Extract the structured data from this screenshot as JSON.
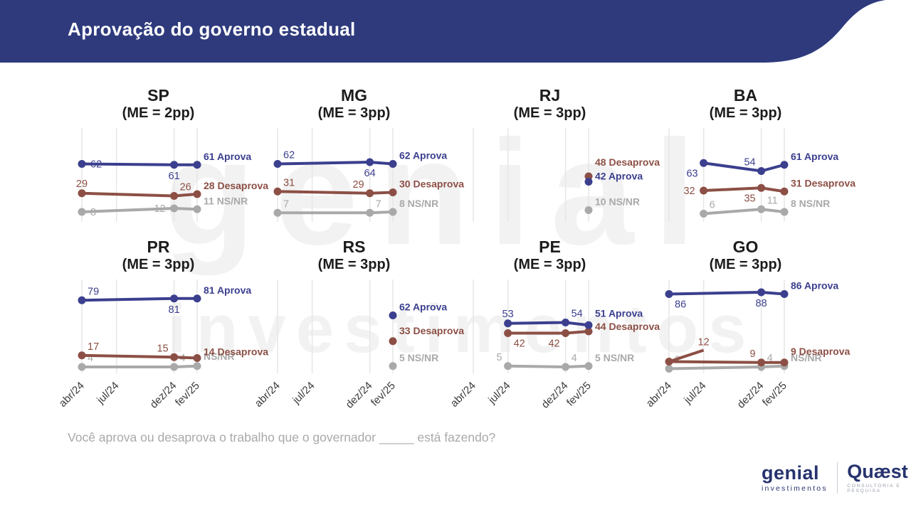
{
  "header": {
    "title": "Aprovação do governo estadual"
  },
  "question": "Você aprova ou desaprova o trabalho que o governador _____ está fazendo?",
  "watermark": {
    "line1": "genial",
    "line2": "investimentos"
  },
  "footer": {
    "genial_name": "genial",
    "genial_sub": "investimentos",
    "quaest_name": "Quæst",
    "quaest_sub": "CONSULTORIA E PESQUISA"
  },
  "colors": {
    "header_bg": "#2e3a7c",
    "aprova": "#3b3f8e",
    "desaprova": "#8c4f45",
    "ns_nr": "#a9a9a9",
    "grid": "#e6e6e6",
    "axis_text": "#3c3c3c",
    "question_text": "#a9a9a9",
    "logo_navy": "#27336f",
    "quaest_sub_color": "#9aa0ad"
  },
  "axis": {
    "ticks": [
      "abr/24",
      "jul/24",
      "dez/24",
      "fev/25"
    ],
    "tick_months": [
      0,
      3,
      8,
      10
    ]
  },
  "chart_data": [
    {
      "type": "line",
      "state": "SP",
      "me": "(ME = 2pp)",
      "row": 0,
      "col": 0,
      "series": [
        {
          "key": "ns_nr",
          "name": "NS/NR",
          "x_months": [
            0,
            8,
            10
          ],
          "values": [
            8,
            12,
            11
          ],
          "point_labels": [
            "8",
            "12"
          ],
          "label_pos": [
            "r",
            "l"
          ],
          "end_label": "11 NS/NR"
        },
        {
          "key": "desaprova",
          "name": "Desaprova",
          "x_months": [
            0,
            8,
            10
          ],
          "values": [
            29,
            26,
            28
          ],
          "point_labels": [
            "29",
            "26"
          ],
          "label_pos": [
            "a",
            "ar"
          ],
          "end_label": "28 Desaprova"
        },
        {
          "key": "aprova",
          "name": "Aprova",
          "x_months": [
            0,
            8,
            10
          ],
          "values": [
            62,
            61,
            61
          ],
          "point_labels": [
            "62",
            "61"
          ],
          "label_pos": [
            "r",
            "b"
          ],
          "end_label": "61 Aprova"
        }
      ]
    },
    {
      "type": "line",
      "state": "MG",
      "me": "(ME = 3pp)",
      "row": 0,
      "col": 1,
      "series": [
        {
          "key": "ns_nr",
          "name": "NS/NR",
          "x_months": [
            0,
            8,
            10
          ],
          "values": [
            7,
            7,
            8
          ],
          "point_labels": [
            "7",
            "7"
          ],
          "label_pos": [
            "ar",
            "ar"
          ],
          "end_label": "8 NS/NR"
        },
        {
          "key": "desaprova",
          "name": "Desaprova",
          "x_months": [
            0,
            8,
            10
          ],
          "values": [
            31,
            29,
            30
          ],
          "point_labels": [
            "31",
            "29"
          ],
          "label_pos": [
            "ar",
            "al"
          ],
          "end_label": "30 Desaprova"
        },
        {
          "key": "aprova",
          "name": "Aprova",
          "x_months": [
            0,
            8,
            10
          ],
          "values": [
            62,
            64,
            62
          ],
          "point_labels": [
            "62",
            "64"
          ],
          "label_pos": [
            "ar",
            "b"
          ],
          "end_label": "62 Aprova"
        }
      ]
    },
    {
      "type": "line",
      "state": "RJ",
      "me": "(ME = 3pp)",
      "row": 0,
      "col": 2,
      "series": [
        {
          "key": "ns_nr",
          "name": "NS/NR",
          "x_months": [
            10
          ],
          "values": [
            10
          ],
          "point_labels": [],
          "label_pos": [],
          "end_label": "10 NS/NR"
        },
        {
          "key": "desaprova",
          "name": "Desaprova",
          "x_months": [
            10
          ],
          "values": [
            48
          ],
          "point_labels": [],
          "label_pos": [],
          "end_label": "48 Desaprova",
          "end_dy": -15
        },
        {
          "key": "aprova",
          "name": "Aprova",
          "x_months": [
            10
          ],
          "values": [
            42
          ],
          "point_labels": [],
          "label_pos": [],
          "end_label": "42 Aprova",
          "end_dy": -3
        }
      ]
    },
    {
      "type": "line",
      "state": "BA",
      "me": "(ME = 3pp)",
      "row": 0,
      "col": 3,
      "series": [
        {
          "key": "ns_nr",
          "name": "NS/NR",
          "x_months": [
            3,
            8,
            10
          ],
          "values": [
            6,
            11,
            8
          ],
          "point_labels": [
            "6",
            "11"
          ],
          "label_pos": [
            "ar",
            "ar"
          ],
          "end_label": "8 NS/NR"
        },
        {
          "key": "desaprova",
          "name": "Desaprova",
          "x_months": [
            3,
            8,
            10
          ],
          "values": [
            32,
            35,
            31
          ],
          "point_labels": [
            "32",
            "35"
          ],
          "label_pos": [
            "l",
            "bl"
          ],
          "end_label": "31 Desaprova"
        },
        {
          "key": "aprova",
          "name": "Aprova",
          "x_months": [
            3,
            8,
            10
          ],
          "values": [
            63,
            54,
            61
          ],
          "point_labels": [
            "63",
            "54"
          ],
          "label_pos": [
            "bl",
            "al"
          ],
          "end_label": "61 Aprova"
        }
      ]
    },
    {
      "type": "line",
      "state": "PR",
      "me": "(ME = 3pp)",
      "row": 1,
      "col": 0,
      "series": [
        {
          "key": "ns_nr",
          "name": "NS/NR",
          "x_months": [
            0,
            8,
            10
          ],
          "values": [
            4,
            4,
            5
          ],
          "point_labels": [
            "4",
            "4"
          ],
          "label_pos": [
            "ar",
            "ar"
          ],
          "end_label": "NS/NR",
          "end_dy": -9
        },
        {
          "key": "desaprova",
          "name": "Desaprova",
          "x_months": [
            0,
            8,
            10
          ],
          "values": [
            17,
            15,
            14
          ],
          "point_labels": [
            "17",
            "15"
          ],
          "label_pos": [
            "ar",
            "al"
          ],
          "end_label": "14 Desaprova",
          "end_dy": -4
        },
        {
          "key": "aprova",
          "name": "Aprova",
          "x_months": [
            0,
            8,
            10
          ],
          "values": [
            79,
            81,
            81
          ],
          "point_labels": [
            "79",
            "81"
          ],
          "label_pos": [
            "ar",
            "b"
          ],
          "end_label": "81 Aprova"
        }
      ]
    },
    {
      "type": "line",
      "state": "RS",
      "me": "(ME = 3pp)",
      "row": 1,
      "col": 1,
      "series": [
        {
          "key": "ns_nr",
          "name": "NS/NR",
          "x_months": [
            10
          ],
          "values": [
            5
          ],
          "point_labels": [],
          "label_pos": [],
          "end_label": "5 NS/NR"
        },
        {
          "key": "desaprova",
          "name": "Desaprova",
          "x_months": [
            10
          ],
          "values": [
            33
          ],
          "point_labels": [],
          "label_pos": [],
          "end_label": "33 Desaprova",
          "end_dy": -10
        },
        {
          "key": "aprova",
          "name": "Aprova",
          "x_months": [
            10
          ],
          "values": [
            62
          ],
          "point_labels": [],
          "label_pos": [],
          "end_label": "62 Aprova"
        }
      ]
    },
    {
      "type": "line",
      "state": "PE",
      "me": "(ME = 3pp)",
      "row": 1,
      "col": 2,
      "series": [
        {
          "key": "ns_nr",
          "name": "NS/NR",
          "x_months": [
            3,
            8,
            10
          ],
          "values": [
            5,
            4,
            5
          ],
          "point_labels": [
            "5",
            "4"
          ],
          "label_pos": [
            "al",
            "ar"
          ],
          "end_label": "5 NS/NR"
        },
        {
          "key": "desaprova",
          "name": "Desaprova",
          "x_months": [
            3,
            8,
            10
          ],
          "values": [
            42,
            42,
            44
          ],
          "point_labels": [
            "42",
            "42"
          ],
          "label_pos": [
            "br",
            "bl"
          ],
          "end_label": "44 Desaprova",
          "end_dy": -2
        },
        {
          "key": "aprova",
          "name": "Aprova",
          "x_months": [
            3,
            8,
            10
          ],
          "values": [
            53,
            54,
            51
          ],
          "point_labels": [
            "53",
            "54"
          ],
          "label_pos": [
            "a",
            "ar"
          ],
          "end_label": "51 Aprova",
          "end_dy": -12
        }
      ]
    },
    {
      "type": "line",
      "state": "GO",
      "me": "(ME = 3pp)",
      "row": 1,
      "col": 3,
      "series": [
        {
          "key": "ns_nr",
          "name": "NS/NR",
          "x_months": [
            0,
            8,
            10
          ],
          "values": [
            2,
            4,
            5
          ],
          "point_labels": [
            "2",
            "4"
          ],
          "label_pos": [
            "ar",
            "ar"
          ],
          "end_label": "NS/NR"
        },
        {
          "key": "desaprova",
          "name": "Desaprova",
          "x_months": [
            0,
            8,
            10
          ],
          "values": [
            10,
            9,
            9
          ],
          "point_labels": [
            "",
            "9"
          ],
          "label_pos": [
            "",
            "al"
          ],
          "end_label": "9 Desaprova",
          "end_dy": -11,
          "extra_segment": {
            "to_month": 3,
            "label": "12",
            "end_dy": -16
          }
        },
        {
          "key": "aprova",
          "name": "Aprova",
          "x_months": [
            0,
            8,
            10
          ],
          "values": [
            86,
            88,
            86
          ],
          "point_labels": [
            "86",
            "88"
          ],
          "label_pos": [
            "br",
            "b"
          ],
          "end_label": "86 Aprova"
        }
      ]
    }
  ]
}
